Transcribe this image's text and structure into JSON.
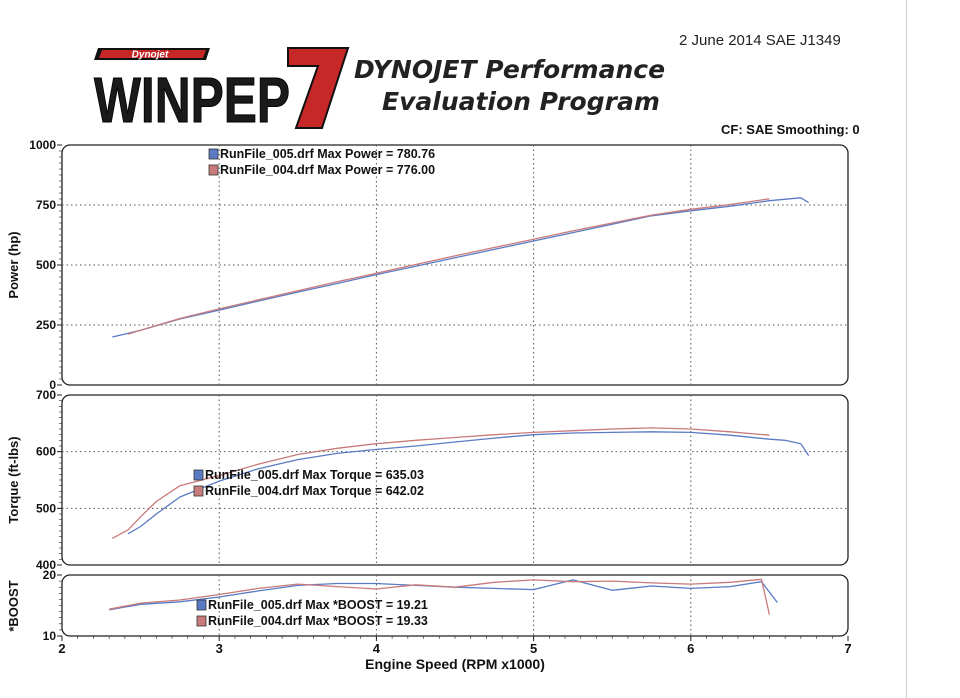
{
  "header": {
    "date_sae": "2 June 2014   SAE J1349",
    "logo_small": "Dynojet",
    "logo_main": "WINPEP",
    "logo_num": "7",
    "program_line1": "DYNOJET Performance",
    "program_line2": "Evaluation Program",
    "cf_smoothing": "CF: SAE  Smoothing: 0"
  },
  "colors": {
    "run005": "#5a7bc4",
    "run004": "#c97a7a",
    "grid": "#555555"
  },
  "chart_data": [
    {
      "type": "line",
      "ylabel": "Power (hp)",
      "ylim": [
        0,
        1000
      ],
      "yticks": [
        "0",
        "250",
        "500",
        "750",
        "1000"
      ],
      "legend": [
        "RunFile_005.drf Max Power = 780.76",
        "RunFile_004.drf Max Power = 776.00"
      ],
      "series": [
        {
          "name": "RunFile_005.drf",
          "x": [
            2.32,
            2.5,
            2.75,
            3.0,
            3.25,
            3.5,
            3.75,
            4.0,
            4.25,
            4.5,
            4.75,
            5.0,
            5.25,
            5.5,
            5.75,
            6.0,
            6.25,
            6.5,
            6.7,
            6.75
          ],
          "y": [
            200,
            228,
            275,
            312,
            350,
            387,
            423,
            460,
            495,
            530,
            565,
            600,
            635,
            670,
            705,
            726,
            745,
            768,
            780,
            760
          ]
        },
        {
          "name": "RunFile_004.drf",
          "x": [
            2.42,
            2.5,
            2.75,
            3.0,
            3.25,
            3.5,
            3.75,
            4.0,
            4.25,
            4.5,
            4.75,
            5.0,
            5.25,
            5.5,
            5.75,
            6.0,
            6.25,
            6.5
          ],
          "y": [
            212,
            228,
            277,
            317,
            355,
            393,
            430,
            466,
            502,
            538,
            573,
            607,
            642,
            675,
            708,
            732,
            752,
            776
          ]
        }
      ]
    },
    {
      "type": "line",
      "ylabel": "Torque (ft-lbs)",
      "ylim": [
        400,
        700
      ],
      "yticks": [
        "400",
        "500",
        "600",
        "700"
      ],
      "legend": [
        "RunFile_005.drf Max Torque = 635.03",
        "RunFile_004.drf Max Torque = 642.02"
      ],
      "series": [
        {
          "name": "RunFile_005.drf",
          "x": [
            2.42,
            2.5,
            2.6,
            2.75,
            3.0,
            3.25,
            3.5,
            3.75,
            4.0,
            4.25,
            4.5,
            4.75,
            5.0,
            5.25,
            5.5,
            5.75,
            6.0,
            6.25,
            6.5,
            6.6,
            6.7,
            6.75
          ],
          "y": [
            455,
            468,
            490,
            520,
            548,
            570,
            586,
            597,
            604,
            610,
            617,
            624,
            630,
            633,
            634,
            635,
            634,
            629,
            622,
            620,
            614,
            593
          ]
        },
        {
          "name": "RunFile_004.drf",
          "x": [
            2.32,
            2.42,
            2.5,
            2.6,
            2.75,
            3.0,
            3.25,
            3.5,
            3.75,
            4.0,
            4.25,
            4.5,
            4.75,
            5.0,
            5.25,
            5.5,
            5.75,
            6.0,
            6.25,
            6.5
          ],
          "y": [
            447,
            462,
            485,
            512,
            540,
            558,
            578,
            595,
            606,
            614,
            620,
            625,
            630,
            634,
            637,
            640,
            642,
            640,
            635,
            629
          ]
        }
      ]
    },
    {
      "type": "line",
      "ylabel": "*BOOST",
      "ylim": [
        10,
        20
      ],
      "yticks": [
        "10",
        "20"
      ],
      "legend": [
        "RunFile_005.drf Max *BOOST = 19.21",
        "RunFile_004.drf Max *BOOST = 19.33"
      ],
      "series": [
        {
          "name": "RunFile_005.drf",
          "x": [
            2.3,
            2.5,
            2.75,
            3.0,
            3.25,
            3.5,
            3.75,
            4.0,
            4.25,
            4.5,
            4.75,
            5.0,
            5.25,
            5.5,
            5.75,
            6.0,
            6.25,
            6.45,
            6.55
          ],
          "y": [
            14.3,
            15.2,
            15.6,
            16.4,
            17.4,
            18.3,
            18.6,
            18.6,
            18.3,
            18.0,
            17.8,
            17.6,
            19.2,
            17.5,
            18.2,
            17.8,
            18.1,
            18.9,
            15.5
          ]
        },
        {
          "name": "RunFile_004.drf",
          "x": [
            2.3,
            2.5,
            2.75,
            3.0,
            3.25,
            3.5,
            3.75,
            4.0,
            4.25,
            4.5,
            4.75,
            5.0,
            5.25,
            5.5,
            5.75,
            6.0,
            6.25,
            6.45,
            6.5
          ],
          "y": [
            14.4,
            15.4,
            15.9,
            16.8,
            17.8,
            18.5,
            18.1,
            17.7,
            18.4,
            18.0,
            18.8,
            19.2,
            18.9,
            19.0,
            18.7,
            18.5,
            18.8,
            19.3,
            13.5
          ]
        }
      ]
    }
  ],
  "x_axis": {
    "label": "Engine Speed (RPM x1000)",
    "xlim": [
      2,
      7
    ],
    "ticks": [
      "2",
      "3",
      "4",
      "5",
      "6",
      "7"
    ]
  }
}
